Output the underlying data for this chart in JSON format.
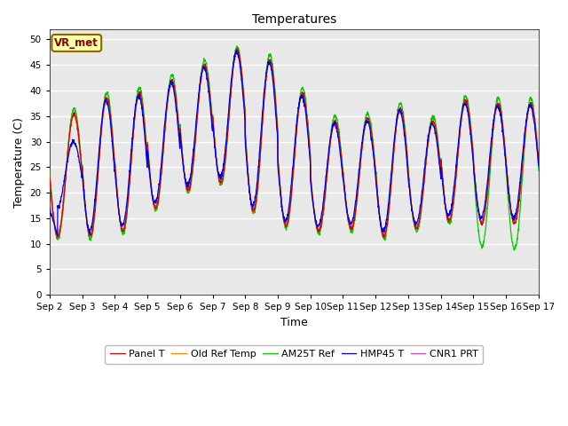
{
  "title": "Temperatures",
  "xlabel": "Time",
  "ylabel": "Temperature (C)",
  "ylim": [
    0,
    52
  ],
  "yticks": [
    0,
    5,
    10,
    15,
    20,
    25,
    30,
    35,
    40,
    45,
    50
  ],
  "fig_bg_color": "#ffffff",
  "plot_bg_color": "#e8e8e8",
  "annotation_text": "VR_met",
  "annotation_bg": "#ffffaa",
  "annotation_border": "#886600",
  "legend_entries": [
    "Panel T",
    "Old Ref Temp",
    "AM25T Ref",
    "HMP45 T",
    "CNR1 PRT"
  ],
  "line_colors": [
    "#dd0000",
    "#ff8800",
    "#00cc00",
    "#0000ee",
    "#cc44cc"
  ],
  "n_days": 15,
  "start_day": 2,
  "pts_per_day": 144
}
